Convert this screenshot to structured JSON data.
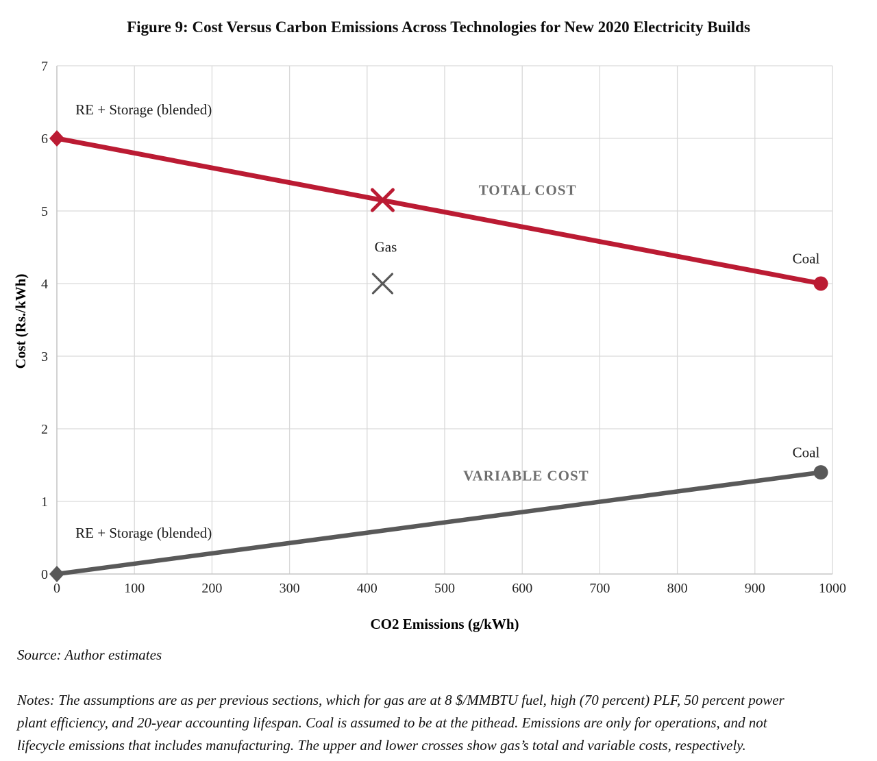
{
  "figure": {
    "title": "Figure 9: Cost Versus Carbon Emissions Across Technologies for New 2020 Electricity Builds",
    "source": "Source: Author estimates",
    "notes_lines": [
      "Notes: The assumptions are as per previous sections, which for gas are at 8 $/MMBTU fuel, high (70 percent) PLF, 50 percent power",
      "plant efficiency, and 20-year accounting lifespan. Coal is assumed to be at the pithead. Emissions are only for operations, and not",
      "lifecycle emissions that includes manufacturing. The upper and lower crosses show gas’s total and variable costs, respectively."
    ]
  },
  "chart_data": {
    "type": "line",
    "title": "Figure 9: Cost Versus Carbon Emissions Across Technologies for New 2020 Electricity Builds",
    "xlabel": "CO2 Emissions (g/kWh)",
    "ylabel": "Cost (Rs./kWh)",
    "xlim": [
      0,
      1000
    ],
    "ylim": [
      0,
      7
    ],
    "x_ticks": [
      0,
      100,
      200,
      300,
      400,
      500,
      600,
      700,
      800,
      900,
      1000
    ],
    "y_ticks": [
      0,
      1,
      2,
      3,
      4,
      5,
      6,
      7
    ],
    "grid": true,
    "legend": "none",
    "colors": {
      "gridline": "#D9D9D9",
      "axis": "#C6C6C6",
      "tick_text": "#262626",
      "label_text": "#1A1A1A",
      "series_label_text": "#6E6E6E",
      "total_cost": "#BB1B33",
      "variable_cost": "#595959"
    },
    "series": [
      {
        "name": "TOTAL COST",
        "color": "#BB1B33",
        "stroke_width": 7,
        "points": [
          {
            "x": 0,
            "y": 6.0,
            "marker": "diamond",
            "point_label": "RE + Storage (blended)"
          },
          {
            "x": 985,
            "y": 4.0,
            "marker": "circle",
            "point_label": "Coal"
          }
        ]
      },
      {
        "name": "VARIABLE COST",
        "color": "#595959",
        "stroke_width": 6.5,
        "points": [
          {
            "x": 0,
            "y": 0.0,
            "marker": "diamond",
            "point_label": "RE + Storage (blended)"
          },
          {
            "x": 985,
            "y": 1.4,
            "marker": "circle",
            "point_label": "Coal"
          }
        ]
      }
    ],
    "gas_markers": [
      {
        "label": "Gas",
        "cost_type": "total",
        "x": 420,
        "y": 5.15,
        "color": "#BB1B33",
        "stroke_width": 5,
        "size": 15
      },
      {
        "label": "Gas",
        "cost_type": "variable",
        "x": 420,
        "y": 4.0,
        "color": "#595959",
        "stroke_width": 3.2,
        "size": 14
      }
    ],
    "annotations": [
      {
        "text": "RE + Storage (blended)",
        "x": 24,
        "y": 6.33,
        "anchor": "start",
        "style": "label"
      },
      {
        "text": "TOTAL COST",
        "x": 607,
        "y": 5.22,
        "anchor": "middle",
        "style": "series"
      },
      {
        "text": "Gas",
        "x": 424,
        "y": 4.44,
        "anchor": "middle",
        "style": "label"
      },
      {
        "text": "Coal",
        "x": 966,
        "y": 4.28,
        "anchor": "middle",
        "style": "label"
      },
      {
        "text": "VARIABLE COST",
        "x": 605,
        "y": 1.29,
        "anchor": "middle",
        "style": "series"
      },
      {
        "text": "Coal",
        "x": 966,
        "y": 1.61,
        "anchor": "middle",
        "style": "label"
      },
      {
        "text": "RE + Storage (blended)",
        "x": 24,
        "y": 0.5,
        "anchor": "start",
        "style": "label"
      }
    ]
  }
}
